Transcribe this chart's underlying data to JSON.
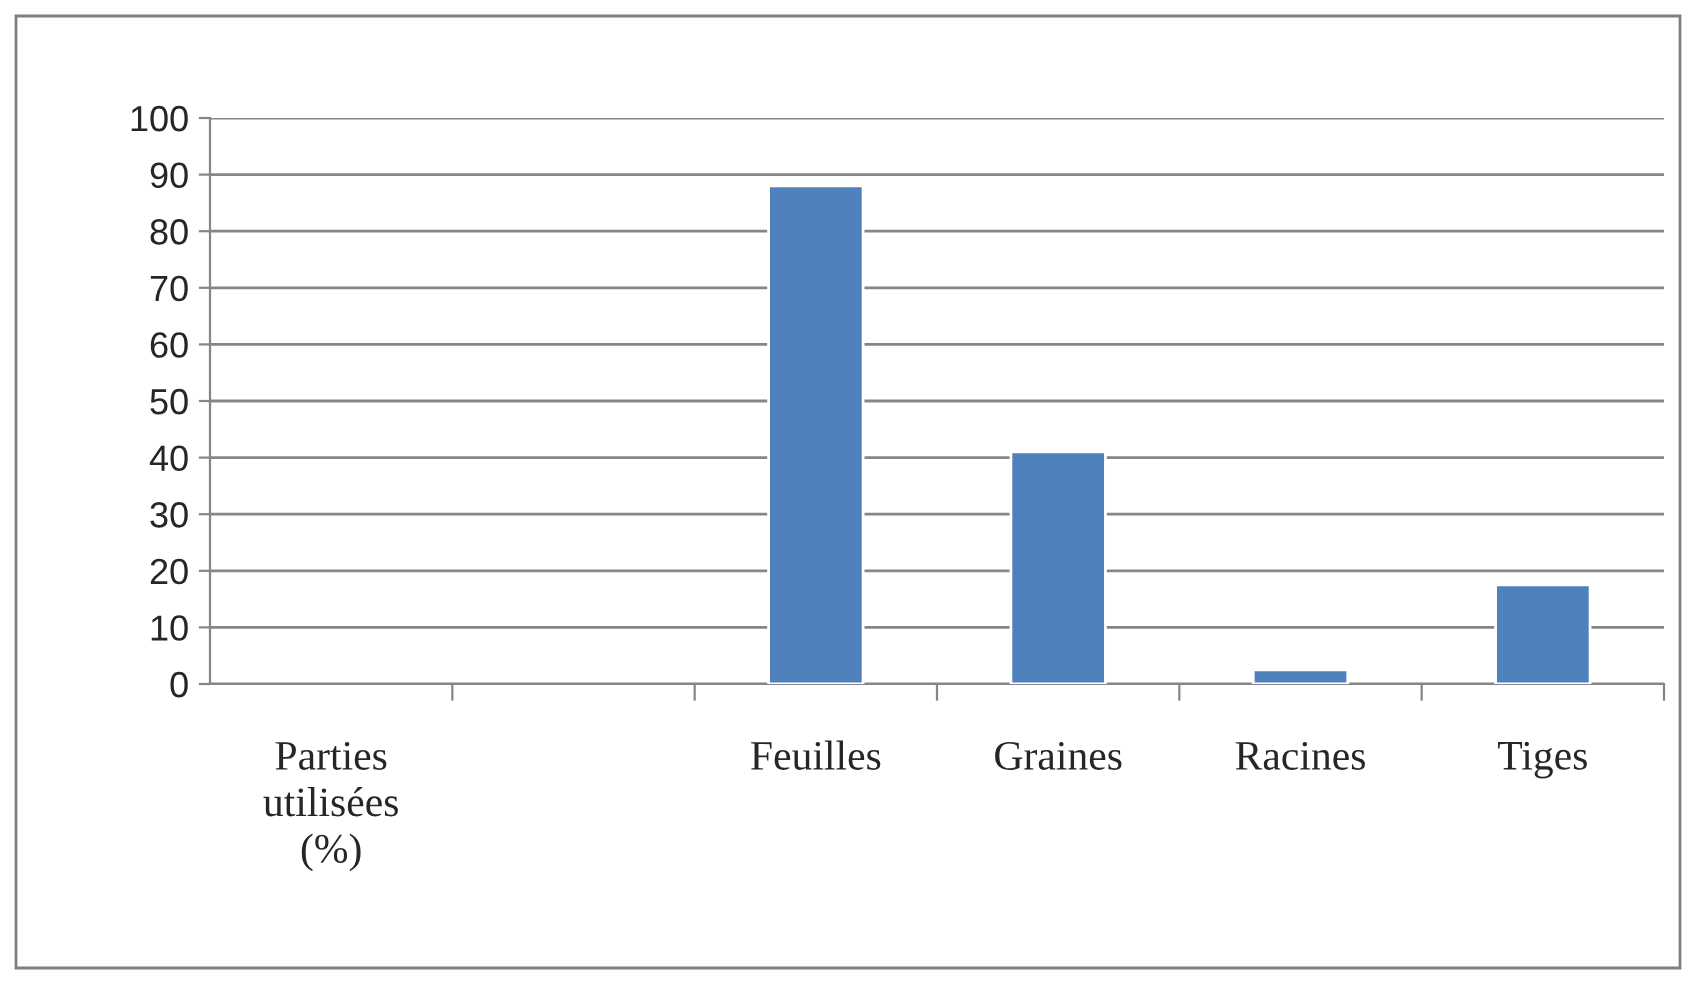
{
  "chart_data": {
    "type": "bar",
    "categories": [
      "Parties\nutilisées\n(%)",
      null,
      "Feuilles",
      "Graines",
      "Racines",
      "Tiges"
    ],
    "values": [
      null,
      null,
      88,
      41,
      2.5,
      17.5
    ],
    "color": "#4f81bd",
    "ylim": [
      0,
      100
    ],
    "yticks": [
      0,
      10,
      20,
      30,
      40,
      50,
      60,
      70,
      80,
      90,
      100
    ],
    "grid": "y",
    "legend": false
  }
}
